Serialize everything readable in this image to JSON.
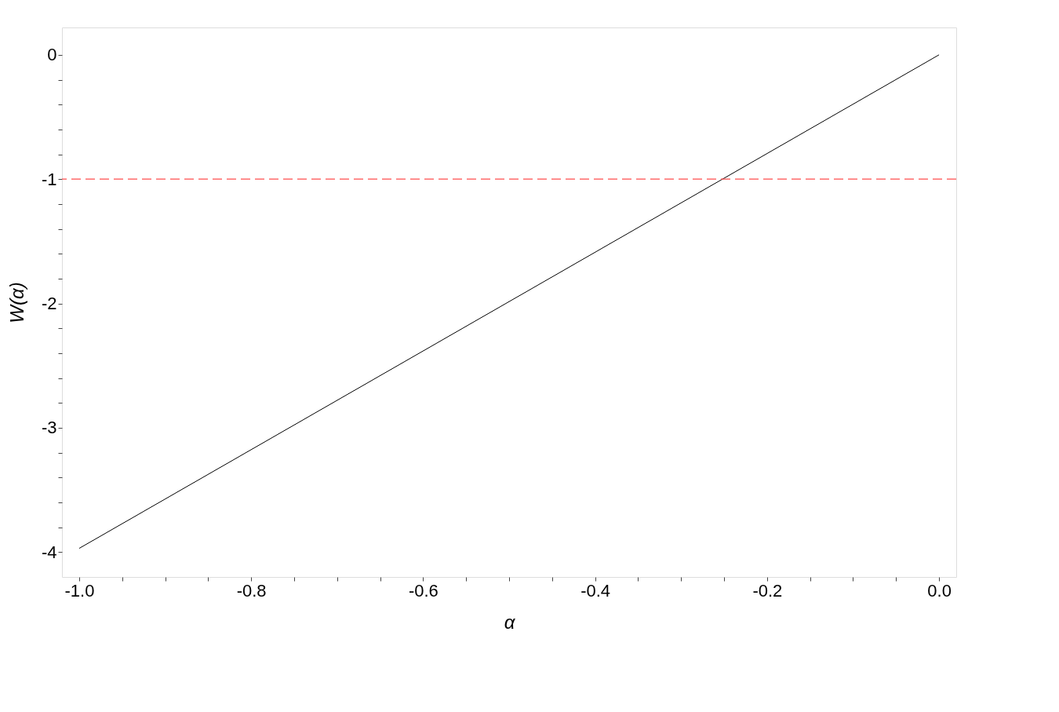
{
  "chart_data": {
    "type": "line",
    "xlabel": "α",
    "ylabel": "W(α)",
    "series": [
      {
        "color": "#000000",
        "x": [
          -1.0,
          0.0
        ],
        "values": [
          -3.97,
          0.0
        ]
      }
    ],
    "xlim": [
      -1.02,
      0.02
    ],
    "ylim": [
      -4.2,
      0.22
    ],
    "xticks": [
      {
        "value": -1.0,
        "label": "-1.0"
      },
      {
        "value": -0.95,
        "label": null
      },
      {
        "value": -0.9,
        "label": null
      },
      {
        "value": -0.85,
        "label": null
      },
      {
        "value": -0.8,
        "label": "-0.8"
      },
      {
        "value": -0.75,
        "label": null
      },
      {
        "value": -0.7,
        "label": null
      },
      {
        "value": -0.65,
        "label": null
      },
      {
        "value": -0.6,
        "label": "-0.6"
      },
      {
        "value": -0.55,
        "label": null
      },
      {
        "value": -0.5,
        "label": null
      },
      {
        "value": -0.45,
        "label": null
      },
      {
        "value": -0.4,
        "label": "-0.4"
      },
      {
        "value": -0.35,
        "label": null
      },
      {
        "value": -0.3,
        "label": null
      },
      {
        "value": -0.25,
        "label": null
      },
      {
        "value": -0.2,
        "label": "-0.2"
      },
      {
        "value": -0.15,
        "label": null
      },
      {
        "value": -0.1,
        "label": null
      },
      {
        "value": -0.05,
        "label": null
      },
      {
        "value": 0.0,
        "label": "0.0"
      }
    ],
    "yticks": [
      0,
      {
        "value": -0.2,
        "label": null
      },
      {
        "value": -0.4,
        "label": null
      },
      {
        "value": -0.6,
        "label": null
      },
      {
        "value": -0.8,
        "label": null
      },
      -1,
      {
        "value": -1.2,
        "label": null
      },
      {
        "value": -1.4,
        "label": null
      },
      {
        "value": -1.6,
        "label": null
      },
      {
        "value": -1.8,
        "label": null
      },
      -2,
      {
        "value": -2.2,
        "label": null
      },
      {
        "value": -2.4,
        "label": null
      },
      {
        "value": -2.6,
        "label": null
      },
      {
        "value": -2.8,
        "label": null
      },
      -3,
      {
        "value": -3.2,
        "label": null
      },
      {
        "value": -3.4,
        "label": null
      },
      {
        "value": -3.6,
        "label": null
      },
      {
        "value": -3.8,
        "label": null
      },
      -4
    ],
    "ref_lines": [
      {
        "axis": "y",
        "value": -1,
        "color": "#ff4d4d",
        "line_style": "dashed"
      }
    ],
    "grid": false
  }
}
